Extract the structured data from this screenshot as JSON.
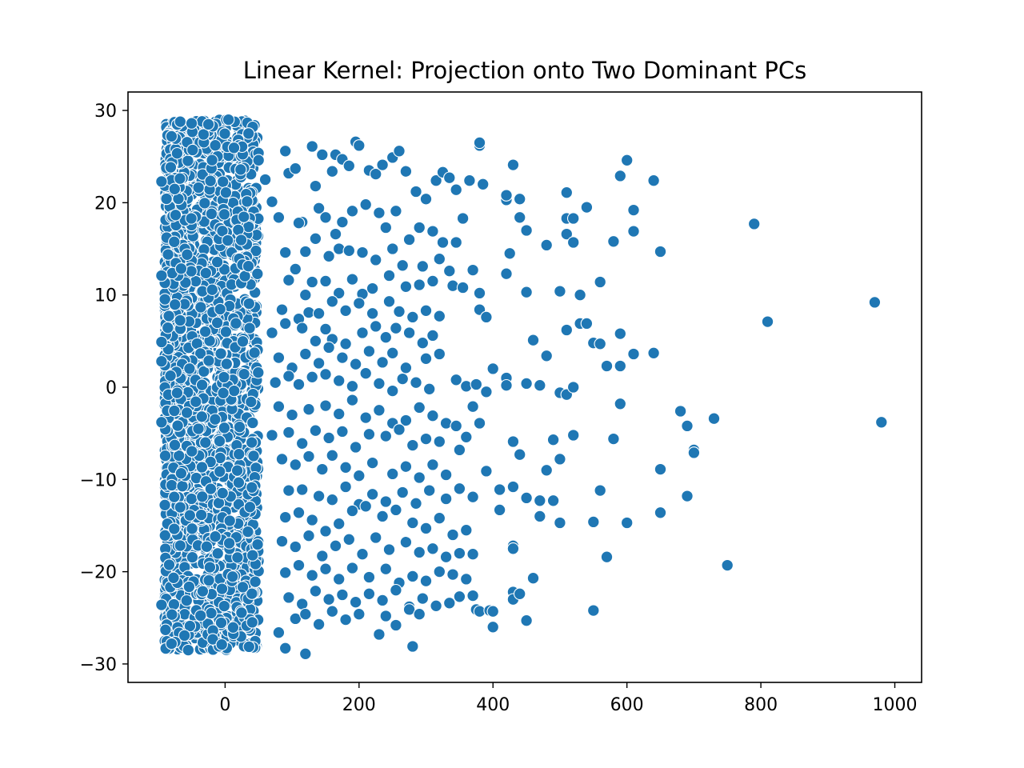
{
  "chart_data": {
    "type": "scatter",
    "title": "Linear Kernel: Projection onto Two Dominant PCs",
    "xlabel": "",
    "ylabel": "",
    "xlim": [
      -145,
      1040
    ],
    "ylim": [
      -32,
      32
    ],
    "xticks": [
      0,
      200,
      400,
      600,
      800,
      1000
    ],
    "yticks": [
      -30,
      -20,
      -10,
      0,
      10,
      20,
      30
    ],
    "xtick_labels": [
      "0",
      "200",
      "400",
      "600",
      "800",
      "1000"
    ],
    "ytick_labels": [
      "−30",
      "−20",
      "−10",
      "0",
      "10",
      "20",
      "30"
    ],
    "grid": false,
    "legend": "none",
    "marker_color": "#1f77b4",
    "marker_edge_color": "#ffffff",
    "dense_region": {
      "x_range": [
        -90,
        50
      ],
      "y_range": [
        -28.5,
        29
      ],
      "approx_points": 2200
    },
    "points": [
      [
        -95,
        22.3
      ],
      [
        -95,
        12.1
      ],
      [
        -95,
        4.9
      ],
      [
        -95,
        2.8
      ],
      [
        -95,
        -3.8
      ],
      [
        -95,
        -23.6
      ],
      [
        -80,
        27.2
      ],
      [
        -80,
        -27.8
      ],
      [
        -50,
        28.6
      ],
      [
        -25,
        28.5
      ],
      [
        5,
        29.0
      ],
      [
        -55,
        -28.5
      ],
      [
        -5,
        -27.9
      ],
      [
        35,
        27.5
      ],
      [
        50,
        24.6
      ],
      [
        60,
        22.5
      ],
      [
        70,
        20.1
      ],
      [
        80,
        18.4
      ],
      [
        90,
        25.6
      ],
      [
        95,
        23.2
      ],
      [
        105,
        23.7
      ],
      [
        115,
        17.9
      ],
      [
        130,
        26.1
      ],
      [
        135,
        21.8
      ],
      [
        145,
        25.2
      ],
      [
        160,
        23.4
      ],
      [
        165,
        25.2
      ],
      [
        175,
        24.7
      ],
      [
        185,
        24.0
      ],
      [
        195,
        26.6
      ],
      [
        200,
        26.2
      ],
      [
        215,
        23.5
      ],
      [
        225,
        23.1
      ],
      [
        235,
        24.1
      ],
      [
        250,
        24.9
      ],
      [
        260,
        25.6
      ],
      [
        270,
        23.4
      ],
      [
        285,
        21.2
      ],
      [
        300,
        20.4
      ],
      [
        315,
        22.4
      ],
      [
        325,
        23.3
      ],
      [
        335,
        22.7
      ],
      [
        345,
        21.4
      ],
      [
        355,
        18.3
      ],
      [
        365,
        22.4
      ],
      [
        380,
        26.2
      ],
      [
        380,
        26.5
      ],
      [
        385,
        22.0
      ],
      [
        420,
        20.3
      ],
      [
        420,
        20.8
      ],
      [
        430,
        24.1
      ],
      [
        440,
        20.4
      ],
      [
        440,
        18.4
      ],
      [
        450,
        17.0
      ],
      [
        480,
        15.4
      ],
      [
        510,
        21.1
      ],
      [
        510,
        18.3
      ],
      [
        510,
        16.6
      ],
      [
        520,
        18.3
      ],
      [
        520,
        15.7
      ],
      [
        540,
        19.5
      ],
      [
        580,
        15.8
      ],
      [
        590,
        22.9
      ],
      [
        600,
        24.6
      ],
      [
        610,
        19.2
      ],
      [
        610,
        16.9
      ],
      [
        640,
        22.4
      ],
      [
        650,
        14.7
      ],
      [
        790,
        17.7
      ],
      [
        110,
        17.8
      ],
      [
        140,
        19.4
      ],
      [
        150,
        18.4
      ],
      [
        165,
        16.6
      ],
      [
        175,
        17.9
      ],
      [
        190,
        19.1
      ],
      [
        210,
        19.8
      ],
      [
        230,
        18.9
      ],
      [
        240,
        17.3
      ],
      [
        255,
        19.1
      ],
      [
        275,
        16.0
      ],
      [
        290,
        17.3
      ],
      [
        310,
        16.9
      ],
      [
        325,
        15.7
      ],
      [
        345,
        15.7
      ],
      [
        90,
        14.6
      ],
      [
        105,
        12.8
      ],
      [
        120,
        14.7
      ],
      [
        135,
        16.1
      ],
      [
        155,
        14.2
      ],
      [
        170,
        15.0
      ],
      [
        185,
        14.8
      ],
      [
        205,
        14.6
      ],
      [
        225,
        13.8
      ],
      [
        250,
        15.0
      ],
      [
        265,
        13.2
      ],
      [
        295,
        13.1
      ],
      [
        320,
        13.9
      ],
      [
        335,
        12.6
      ],
      [
        370,
        12.7
      ],
      [
        420,
        12.3
      ],
      [
        425,
        14.5
      ],
      [
        95,
        11.6
      ],
      [
        120,
        10.0
      ],
      [
        130,
        11.4
      ],
      [
        150,
        11.5
      ],
      [
        170,
        10.2
      ],
      [
        190,
        11.7
      ],
      [
        205,
        10.1
      ],
      [
        220,
        10.7
      ],
      [
        245,
        12.1
      ],
      [
        270,
        10.9
      ],
      [
        290,
        11.1
      ],
      [
        310,
        11.5
      ],
      [
        340,
        11.0
      ],
      [
        355,
        10.8
      ],
      [
        380,
        10.2
      ],
      [
        450,
        10.3
      ],
      [
        500,
        10.4
      ],
      [
        530,
        10.0
      ],
      [
        560,
        11.4
      ],
      [
        85,
        8.4
      ],
      [
        110,
        7.4
      ],
      [
        125,
        8.1
      ],
      [
        140,
        8.0
      ],
      [
        160,
        9.3
      ],
      [
        180,
        8.3
      ],
      [
        200,
        9.1
      ],
      [
        220,
        8.0
      ],
      [
        245,
        9.3
      ],
      [
        260,
        8.2
      ],
      [
        280,
        7.6
      ],
      [
        300,
        8.3
      ],
      [
        320,
        7.7
      ],
      [
        380,
        8.4
      ],
      [
        390,
        7.6
      ],
      [
        460,
        5.1
      ],
      [
        510,
        6.2
      ],
      [
        530,
        6.9
      ],
      [
        540,
        6.9
      ],
      [
        590,
        5.8
      ],
      [
        970,
        9.2
      ],
      [
        810,
        7.1
      ],
      [
        70,
        5.9
      ],
      [
        90,
        6.9
      ],
      [
        115,
        6.4
      ],
      [
        135,
        5.0
      ],
      [
        150,
        6.3
      ],
      [
        160,
        5.2
      ],
      [
        180,
        4.7
      ],
      [
        205,
        5.9
      ],
      [
        225,
        6.6
      ],
      [
        240,
        5.4
      ],
      [
        255,
        6.4
      ],
      [
        275,
        5.9
      ],
      [
        295,
        4.8
      ],
      [
        310,
        5.6
      ],
      [
        80,
        3.2
      ],
      [
        100,
        2.1
      ],
      [
        120,
        3.6
      ],
      [
        140,
        2.6
      ],
      [
        155,
        4.3
      ],
      [
        175,
        3.2
      ],
      [
        195,
        2.5
      ],
      [
        215,
        3.9
      ],
      [
        235,
        2.7
      ],
      [
        250,
        3.7
      ],
      [
        270,
        2.1
      ],
      [
        300,
        3.1
      ],
      [
        320,
        3.6
      ],
      [
        400,
        2.0
      ],
      [
        420,
        1.0
      ],
      [
        480,
        3.4
      ],
      [
        550,
        4.8
      ],
      [
        560,
        4.7
      ],
      [
        570,
        2.3
      ],
      [
        590,
        2.3
      ],
      [
        610,
        3.6
      ],
      [
        640,
        3.7
      ],
      [
        75,
        0.5
      ],
      [
        95,
        1.2
      ],
      [
        110,
        0.3
      ],
      [
        130,
        1.1
      ],
      [
        150,
        1.4
      ],
      [
        170,
        0.7
      ],
      [
        190,
        0.1
      ],
      [
        210,
        1.5
      ],
      [
        230,
        0.4
      ],
      [
        250,
        -0.4
      ],
      [
        265,
        0.9
      ],
      [
        285,
        0.5
      ],
      [
        305,
        -0.2
      ],
      [
        345,
        0.8
      ],
      [
        360,
        0.1
      ],
      [
        375,
        0.3
      ],
      [
        390,
        -0.5
      ],
      [
        420,
        0.2
      ],
      [
        450,
        0.4
      ],
      [
        470,
        0.2
      ],
      [
        500,
        -0.6
      ],
      [
        510,
        -0.8
      ],
      [
        520,
        0.0
      ],
      [
        80,
        -2.1
      ],
      [
        100,
        -3.0
      ],
      [
        125,
        -2.4
      ],
      [
        150,
        -2.0
      ],
      [
        170,
        -2.9
      ],
      [
        190,
        -1.4
      ],
      [
        210,
        -3.3
      ],
      [
        230,
        -2.5
      ],
      [
        250,
        -3.9
      ],
      [
        270,
        -3.6
      ],
      [
        290,
        -2.2
      ],
      [
        310,
        -3.1
      ],
      [
        330,
        -3.9
      ],
      [
        345,
        -4.2
      ],
      [
        370,
        -2.1
      ],
      [
        380,
        -3.9
      ],
      [
        680,
        -2.6
      ],
      [
        690,
        -4.2
      ],
      [
        730,
        -3.4
      ],
      [
        980,
        -3.8
      ],
      [
        590,
        -1.8
      ],
      [
        70,
        -5.2
      ],
      [
        95,
        -4.9
      ],
      [
        115,
        -6.1
      ],
      [
        135,
        -4.7
      ],
      [
        155,
        -5.5
      ],
      [
        175,
        -4.8
      ],
      [
        195,
        -6.5
      ],
      [
        215,
        -5.1
      ],
      [
        240,
        -5.3
      ],
      [
        260,
        -4.6
      ],
      [
        280,
        -6.3
      ],
      [
        300,
        -5.6
      ],
      [
        320,
        -5.9
      ],
      [
        350,
        -6.8
      ],
      [
        360,
        -5.4
      ],
      [
        430,
        -5.9
      ],
      [
        440,
        -7.3
      ],
      [
        490,
        -5.7
      ],
      [
        520,
        -5.2
      ],
      [
        580,
        -5.6
      ],
      [
        700,
        -6.8
      ],
      [
        700,
        -7.1
      ],
      [
        85,
        -7.8
      ],
      [
        105,
        -8.4
      ],
      [
        125,
        -7.5
      ],
      [
        145,
        -8.9
      ],
      [
        160,
        -7.4
      ],
      [
        180,
        -8.7
      ],
      [
        200,
        -9.6
      ],
      [
        220,
        -8.2
      ],
      [
        250,
        -9.4
      ],
      [
        270,
        -8.6
      ],
      [
        290,
        -9.8
      ],
      [
        310,
        -8.4
      ],
      [
        330,
        -9.5
      ],
      [
        390,
        -9.1
      ],
      [
        480,
        -9.0
      ],
      [
        500,
        -7.8
      ],
      [
        650,
        -8.9
      ],
      [
        95,
        -11.2
      ],
      [
        115,
        -11.1
      ],
      [
        140,
        -11.8
      ],
      [
        160,
        -12.2
      ],
      [
        180,
        -10.8
      ],
      [
        200,
        -12.7
      ],
      [
        220,
        -11.6
      ],
      [
        240,
        -12.4
      ],
      [
        265,
        -11.4
      ],
      [
        285,
        -12.6
      ],
      [
        305,
        -11.2
      ],
      [
        330,
        -12.1
      ],
      [
        350,
        -11.0
      ],
      [
        370,
        -11.9
      ],
      [
        410,
        -11.1
      ],
      [
        430,
        -10.8
      ],
      [
        450,
        -12.0
      ],
      [
        470,
        -12.3
      ],
      [
        490,
        -12.3
      ],
      [
        560,
        -11.2
      ],
      [
        690,
        -11.8
      ],
      [
        90,
        -14.1
      ],
      [
        110,
        -13.6
      ],
      [
        130,
        -14.4
      ],
      [
        150,
        -15.6
      ],
      [
        170,
        -14.8
      ],
      [
        190,
        -13.4
      ],
      [
        210,
        -12.9
      ],
      [
        235,
        -14.0
      ],
      [
        255,
        -13.3
      ],
      [
        280,
        -14.7
      ],
      [
        300,
        -15.3
      ],
      [
        320,
        -14.2
      ],
      [
        340,
        -16.0
      ],
      [
        360,
        -15.5
      ],
      [
        410,
        -13.3
      ],
      [
        470,
        -14.0
      ],
      [
        500,
        -14.7
      ],
      [
        550,
        -14.6
      ],
      [
        600,
        -14.7
      ],
      [
        650,
        -13.6
      ],
      [
        85,
        -16.7
      ],
      [
        105,
        -17.3
      ],
      [
        125,
        -16.1
      ],
      [
        145,
        -18.3
      ],
      [
        165,
        -17.2
      ],
      [
        185,
        -16.5
      ],
      [
        205,
        -18.1
      ],
      [
        225,
        -16.3
      ],
      [
        245,
        -17.6
      ],
      [
        270,
        -16.8
      ],
      [
        290,
        -17.9
      ],
      [
        310,
        -17.5
      ],
      [
        330,
        -18.4
      ],
      [
        350,
        -18.0
      ],
      [
        370,
        -18.1
      ],
      [
        430,
        -17.2
      ],
      [
        430,
        -17.5
      ],
      [
        570,
        -18.4
      ],
      [
        750,
        -19.3
      ],
      [
        90,
        -20.1
      ],
      [
        110,
        -19.3
      ],
      [
        130,
        -20.4
      ],
      [
        150,
        -19.7
      ],
      [
        170,
        -20.8
      ],
      [
        190,
        -19.6
      ],
      [
        215,
        -20.6
      ],
      [
        240,
        -19.7
      ],
      [
        260,
        -21.2
      ],
      [
        280,
        -20.5
      ],
      [
        300,
        -21.0
      ],
      [
        320,
        -20.0
      ],
      [
        340,
        -20.3
      ],
      [
        360,
        -20.8
      ],
      [
        460,
        -20.7
      ],
      [
        95,
        -22.8
      ],
      [
        115,
        -23.5
      ],
      [
        135,
        -22.1
      ],
      [
        155,
        -23.0
      ],
      [
        175,
        -22.5
      ],
      [
        195,
        -23.3
      ],
      [
        215,
        -22.4
      ],
      [
        235,
        -23.1
      ],
      [
        255,
        -22.0
      ],
      [
        275,
        -23.8
      ],
      [
        295,
        -22.9
      ],
      [
        315,
        -23.7
      ],
      [
        335,
        -23.4
      ],
      [
        350,
        -22.7
      ],
      [
        370,
        -22.6
      ],
      [
        375,
        -24.1
      ],
      [
        380,
        -24.3
      ],
      [
        395,
        -24.2
      ],
      [
        430,
        -22.2
      ],
      [
        430,
        -23.0
      ],
      [
        440,
        -22.4
      ],
      [
        80,
        -26.6
      ],
      [
        105,
        -25.1
      ],
      [
        120,
        -24.6
      ],
      [
        140,
        -25.7
      ],
      [
        160,
        -24.3
      ],
      [
        180,
        -25.2
      ],
      [
        200,
        -24.6
      ],
      [
        230,
        -26.8
      ],
      [
        240,
        -24.8
      ],
      [
        255,
        -25.8
      ],
      [
        275,
        -24.1
      ],
      [
        290,
        -24.6
      ],
      [
        400,
        -24.3
      ],
      [
        400,
        -26.0
      ],
      [
        450,
        -25.3
      ],
      [
        550,
        -24.2
      ],
      [
        90,
        -28.3
      ],
      [
        120,
        -28.9
      ],
      [
        280,
        -28.1
      ]
    ]
  }
}
